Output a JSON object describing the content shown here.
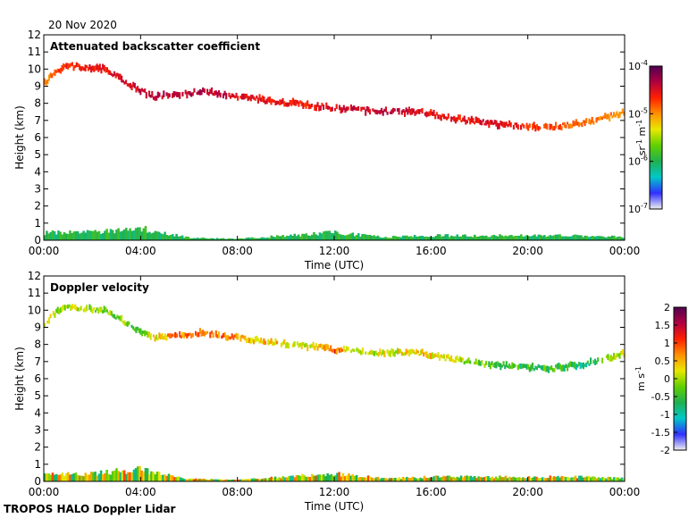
{
  "date": "20 Nov 2020",
  "footer": "TROPOS HALO Doppler Lidar",
  "colors": {
    "backscatter_ramp": [
      "#f0f0f0",
      "#3030ff",
      "#00c8c8",
      "#20b050",
      "#60d000",
      "#e8e800",
      "#ff9000",
      "#ff2000",
      "#b00040",
      "#500050"
    ],
    "velocity_ramp": [
      "#f0f0f0",
      "#3030ff",
      "#00c8c8",
      "#20b050",
      "#60d000",
      "#e8e800",
      "#ff9000",
      "#ff2000",
      "#b00040",
      "#500050"
    ]
  },
  "chart_data": [
    {
      "type": "heatmap",
      "title": "Attenuated backscatter coefficient",
      "xlabel": "Time (UTC)",
      "ylabel": "Height (km)",
      "x_ticks": [
        "00:00",
        "04:00",
        "08:00",
        "12:00",
        "16:00",
        "20:00",
        "00:00"
      ],
      "y_ticks": [
        "0",
        "1",
        "2",
        "3",
        "4",
        "5",
        "6",
        "7",
        "8",
        "9",
        "10",
        "11",
        "12"
      ],
      "xlim_hours": [
        0,
        24
      ],
      "ylim": [
        0,
        12
      ],
      "grid": false,
      "legend": "colorbar right",
      "colorbar": {
        "unit": "sr-1 m-1",
        "scale": "log",
        "range": [
          1e-07,
          0.0001
        ],
        "tick_labels": [
          "10-4",
          "10-5",
          "10-6",
          "10-7"
        ]
      },
      "cloud_layer": {
        "times_hours": [
          0.0,
          0.5,
          1.0,
          2.5,
          4.0,
          4.5,
          5.5,
          6.5,
          8.0,
          9.5,
          11.0,
          12.0,
          13.0,
          14.5,
          15.5,
          17.0,
          18.5,
          19.5,
          21.0,
          22.5,
          24.0
        ],
        "heights_km": [
          9.2,
          9.9,
          10.2,
          10.0,
          8.7,
          8.4,
          8.5,
          8.7,
          8.4,
          8.1,
          7.9,
          7.7,
          7.6,
          7.5,
          7.5,
          7.1,
          6.8,
          6.7,
          6.6,
          6.9,
          7.5
        ],
        "backscatter_log10": [
          -5.0,
          -4.8,
          -4.6,
          -4.6,
          -4.4,
          -4.4,
          -4.4,
          -4.3,
          -4.5,
          -4.6,
          -4.6,
          -4.5,
          -4.4,
          -4.4,
          -4.5,
          -4.6,
          -4.5,
          -4.6,
          -4.8,
          -4.9,
          -5.0
        ]
      },
      "boundary_layer": {
        "times_hours": [
          0,
          2,
          4,
          6,
          8,
          10,
          12,
          14,
          16,
          18,
          20,
          22,
          24
        ],
        "top_km": [
          0.5,
          0.5,
          0.8,
          0.15,
          0.1,
          0.3,
          0.5,
          0.2,
          0.3,
          0.3,
          0.3,
          0.3,
          0.2
        ]
      }
    },
    {
      "type": "heatmap",
      "title": "Doppler velocity",
      "xlabel": "Time (UTC)",
      "ylabel": "Height (km)",
      "x_ticks": [
        "00:00",
        "04:00",
        "08:00",
        "12:00",
        "16:00",
        "20:00",
        "00:00"
      ],
      "y_ticks": [
        "0",
        "1",
        "2",
        "3",
        "4",
        "5",
        "6",
        "7",
        "8",
        "9",
        "10",
        "11",
        "12"
      ],
      "xlim_hours": [
        0,
        24
      ],
      "ylim": [
        0,
        12
      ],
      "grid": false,
      "legend": "colorbar right",
      "colorbar": {
        "unit": "m s-1",
        "range": [
          -2,
          2
        ],
        "tick_labels": [
          "2",
          "1.5",
          "1",
          "0.5",
          "0",
          "-0.5",
          "-1",
          "-1.5",
          "-2"
        ]
      },
      "cloud_layer": {
        "times_hours": [
          0.0,
          0.5,
          1.0,
          2.5,
          4.0,
          4.5,
          5.5,
          6.5,
          8.0,
          9.5,
          11.0,
          12.0,
          13.0,
          14.5,
          15.5,
          17.0,
          18.5,
          19.5,
          21.0,
          22.5,
          24.0
        ],
        "heights_km": [
          9.2,
          9.9,
          10.2,
          10.0,
          8.7,
          8.4,
          8.5,
          8.7,
          8.4,
          8.1,
          7.9,
          7.7,
          7.6,
          7.5,
          7.5,
          7.1,
          6.8,
          6.7,
          6.6,
          6.9,
          7.5
        ],
        "velocity_ms": [
          0.3,
          -0.1,
          0.0,
          -0.2,
          -0.3,
          0.2,
          0.8,
          0.9,
          0.6,
          0.4,
          0.1,
          0.9,
          0.0,
          0.2,
          0.4,
          0.1,
          -0.5,
          -0.6,
          -0.5,
          -0.8,
          0.3
        ]
      },
      "boundary_layer": {
        "times_hours": [
          0,
          2,
          4,
          6,
          8,
          10,
          12,
          14,
          16,
          18,
          20,
          22,
          24
        ],
        "top_km": [
          0.5,
          0.5,
          0.8,
          0.15,
          0.1,
          0.3,
          0.5,
          0.2,
          0.3,
          0.3,
          0.3,
          0.3,
          0.2
        ]
      }
    }
  ]
}
